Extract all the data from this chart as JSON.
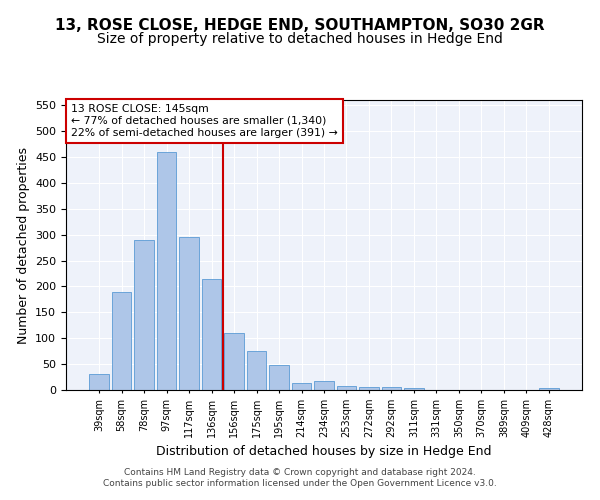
{
  "title": "13, ROSE CLOSE, HEDGE END, SOUTHAMPTON, SO30 2GR",
  "subtitle": "Size of property relative to detached houses in Hedge End",
  "xlabel": "Distribution of detached houses by size in Hedge End",
  "ylabel": "Number of detached properties",
  "categories": [
    "39sqm",
    "58sqm",
    "78sqm",
    "97sqm",
    "117sqm",
    "136sqm",
    "156sqm",
    "175sqm",
    "195sqm",
    "214sqm",
    "234sqm",
    "253sqm",
    "272sqm",
    "292sqm",
    "311sqm",
    "331sqm",
    "350sqm",
    "370sqm",
    "389sqm",
    "409sqm",
    "428sqm"
  ],
  "values": [
    30,
    190,
    290,
    460,
    295,
    215,
    110,
    75,
    48,
    13,
    18,
    8,
    5,
    5,
    3,
    0,
    0,
    0,
    0,
    0,
    3
  ],
  "bar_color": "#aec6e8",
  "bar_edge_color": "#5b9bd5",
  "ref_line_x": 5.5,
  "ref_line_color": "#cc0000",
  "annotation_text": "13 ROSE CLOSE: 145sqm\n← 77% of detached houses are smaller (1,340)\n22% of semi-detached houses are larger (391) →",
  "annotation_box_color": "#cc0000",
  "ylim": [
    0,
    560
  ],
  "yticks": [
    0,
    50,
    100,
    150,
    200,
    250,
    300,
    350,
    400,
    450,
    500,
    550
  ],
  "title_fontsize": 11,
  "subtitle_fontsize": 10,
  "xlabel_fontsize": 9,
  "ylabel_fontsize": 9,
  "tick_fontsize": 8,
  "footer_text": "Contains HM Land Registry data © Crown copyright and database right 2024.\nContains public sector information licensed under the Open Government Licence v3.0.",
  "background_color": "#eef2fa",
  "grid_color": "#ffffff"
}
